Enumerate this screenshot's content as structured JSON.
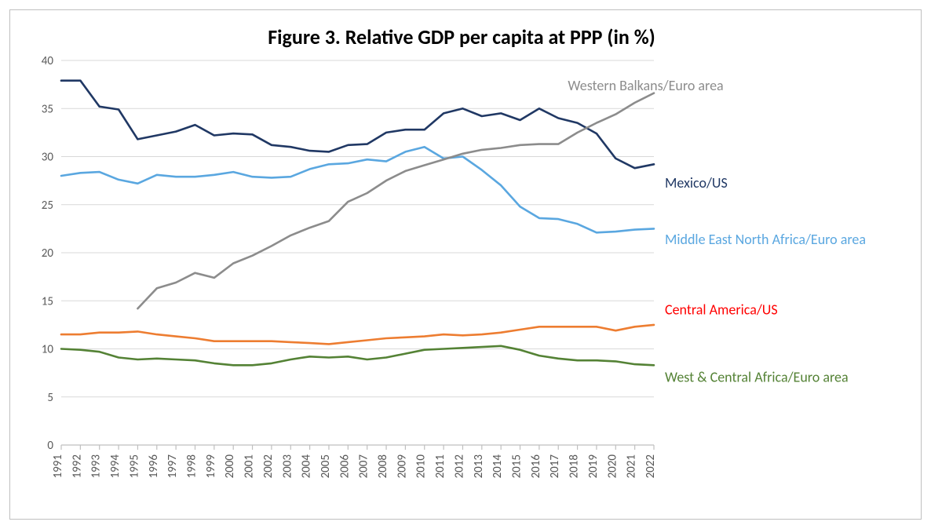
{
  "chart": {
    "type": "line",
    "title": "Figure 3. Relative GDP per capita at PPP (in %)",
    "title_fontsize": 26,
    "title_fontweight": 700,
    "background_color": "#ffffff",
    "frame_border_color": "#bfbfbf",
    "grid_color": "#d9d9d9",
    "axis_line_color": "#bfbfbf",
    "axis_tick_color": "#595959",
    "tick_font_size": 15,
    "label_font_size": 18,
    "years": [
      1991,
      1992,
      1993,
      1994,
      1995,
      1996,
      1997,
      1998,
      1999,
      2000,
      2001,
      2002,
      2003,
      2004,
      2005,
      2006,
      2007,
      2008,
      2009,
      2010,
      2011,
      2012,
      2013,
      2014,
      2015,
      2016,
      2017,
      2018,
      2019,
      2020,
      2021,
      2022
    ],
    "ylim": [
      0,
      40
    ],
    "ytick_step": 5,
    "line_width": 2.6,
    "series": [
      {
        "id": "mexico_us",
        "label": "Mexico/US",
        "color": "#203864",
        "label_pos": {
          "x_year": 2022,
          "dx": 14,
          "y": 27.2,
          "anchor": "start"
        },
        "values": [
          37.9,
          37.9,
          35.2,
          34.9,
          31.8,
          32.2,
          32.6,
          33.3,
          32.2,
          32.4,
          32.3,
          31.2,
          31.0,
          30.6,
          30.5,
          31.2,
          31.3,
          32.5,
          32.8,
          32.8,
          34.5,
          35.0,
          34.2,
          34.5,
          33.8,
          35.0,
          34.0,
          33.5,
          32.4,
          29.8,
          28.8,
          29.2
        ]
      },
      {
        "id": "mena_euro",
        "label": "Middle East North Africa/Euro area",
        "color": "#5aa7e0",
        "label_pos": {
          "x_year": 2022,
          "dx": 14,
          "y": 21.3,
          "anchor": "start"
        },
        "values": [
          28.0,
          28.3,
          28.4,
          27.6,
          27.2,
          28.1,
          27.9,
          27.9,
          28.1,
          28.4,
          27.9,
          27.8,
          27.9,
          28.7,
          29.2,
          29.3,
          29.7,
          29.5,
          30.5,
          31.0,
          29.8,
          30.0,
          28.6,
          27.0,
          24.8,
          23.6,
          23.5,
          23.0,
          22.1,
          22.2,
          22.4,
          22.5
        ]
      },
      {
        "id": "wbalkans_euro",
        "label": "Western Balkans/Euro area",
        "color": "#8c8c8c",
        "label_pos": {
          "x_year": 2017.5,
          "dx": 0,
          "y": 37.3,
          "anchor": "start"
        },
        "values": [
          null,
          null,
          null,
          null,
          14.2,
          16.3,
          16.9,
          17.9,
          17.4,
          18.9,
          19.7,
          20.7,
          21.8,
          22.6,
          23.3,
          25.3,
          26.2,
          27.5,
          28.5,
          29.1,
          29.7,
          30.3,
          30.7,
          30.9,
          31.2,
          31.3,
          31.3,
          32.5,
          33.5,
          34.4,
          35.6,
          36.6
        ]
      },
      {
        "id": "camerica_us",
        "label": "Central America/US",
        "color": "#ff0000",
        "line_color": "#ed7d31",
        "label_pos": {
          "x_year": 2022,
          "dx": 14,
          "y": 14.0,
          "anchor": "start"
        },
        "values": [
          11.5,
          11.5,
          11.7,
          11.7,
          11.8,
          11.5,
          11.3,
          11.1,
          10.8,
          10.8,
          10.8,
          10.8,
          10.7,
          10.6,
          10.5,
          10.7,
          10.9,
          11.1,
          11.2,
          11.3,
          11.5,
          11.4,
          11.5,
          11.7,
          12.0,
          12.3,
          12.3,
          12.3,
          12.3,
          11.9,
          12.3,
          12.5
        ]
      },
      {
        "id": "wcafrica_euro",
        "label": "West & Central Africa/Euro area",
        "color": "#548235",
        "label_pos": {
          "x_year": 2022,
          "dx": 14,
          "y": 7.0,
          "anchor": "start"
        },
        "values": [
          10.0,
          9.9,
          9.7,
          9.1,
          8.9,
          9.0,
          8.9,
          8.8,
          8.5,
          8.3,
          8.3,
          8.5,
          8.9,
          9.2,
          9.1,
          9.2,
          8.9,
          9.1,
          9.5,
          9.9,
          10.0,
          10.1,
          10.2,
          10.3,
          9.9,
          9.3,
          9.0,
          8.8,
          8.8,
          8.7,
          8.4,
          8.3
        ]
      }
    ]
  }
}
